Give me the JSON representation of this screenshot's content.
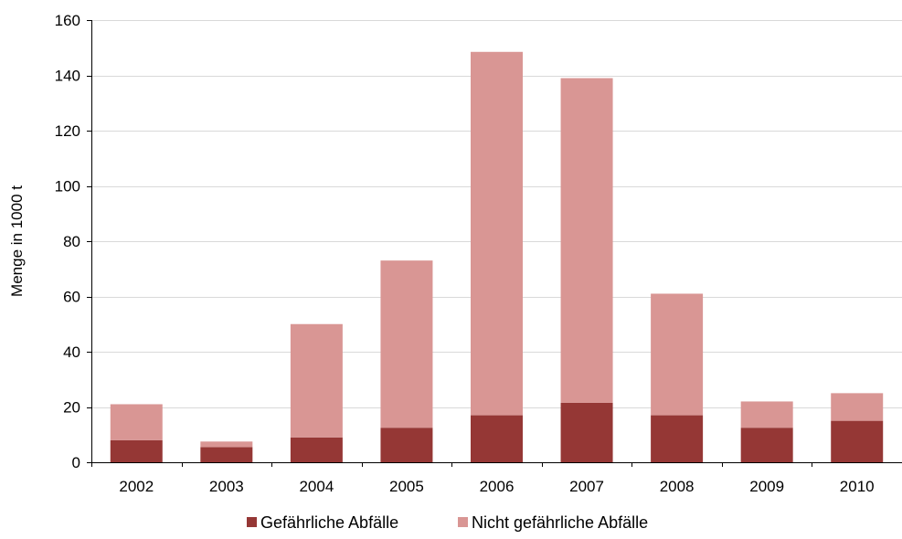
{
  "chart_data": {
    "type": "bar",
    "stacked": true,
    "categories": [
      "2002",
      "2003",
      "2004",
      "2005",
      "2006",
      "2007",
      "2008",
      "2009",
      "2010"
    ],
    "series": [
      {
        "name": "Gefährliche Abfälle",
        "color": "#953735",
        "values": [
          8,
          5.5,
          9,
          12.5,
          17,
          21.5,
          17,
          12.5,
          15
        ]
      },
      {
        "name": "Nicht gefährliche Abfälle",
        "color": "#d99694",
        "values": [
          13,
          2,
          41,
          60.5,
          131.5,
          117.5,
          44,
          9.5,
          10
        ]
      }
    ],
    "ylabel": "Menge in 1000 t",
    "ylim": [
      0,
      160
    ],
    "yticks": [
      0,
      20,
      40,
      60,
      80,
      100,
      120,
      140,
      160
    ],
    "grid": true,
    "legend_position": "bottom"
  }
}
